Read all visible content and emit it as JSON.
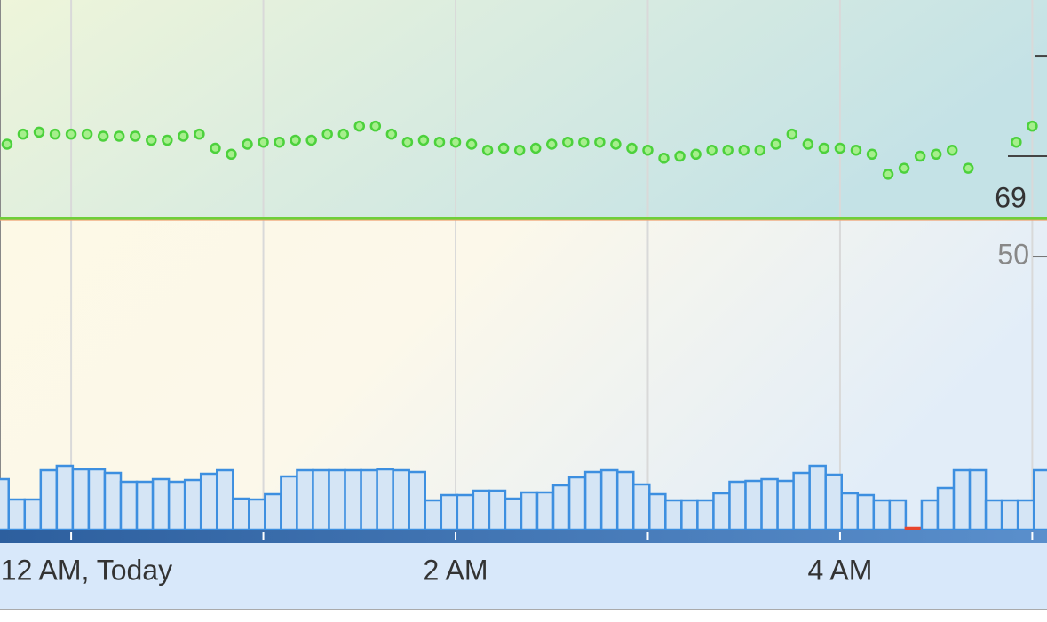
{
  "chart_data": {
    "type": "scatter",
    "xlim": [
      -22.2,
      304.6
    ],
    "ylim": [
      -87.6,
      177.9
    ],
    "yticks": [
      50
    ],
    "ytick_marks": [
      100,
      150
    ],
    "threshold": 69,
    "xticks": [
      {
        "value": 0,
        "label": "12 AM, Today"
      },
      {
        "value": 120,
        "label": "2 AM"
      },
      {
        "value": 240,
        "label": "4 AM"
      }
    ],
    "xgrid": [
      0,
      60,
      120,
      180,
      240,
      300
    ],
    "grid": true,
    "series": [
      {
        "color": "#4cd13c",
        "x": [
          -20,
          -15,
          -10,
          -5,
          0,
          5,
          10,
          15,
          20,
          25,
          30,
          35,
          40,
          45,
          50,
          55,
          60,
          65,
          70,
          75,
          80,
          85,
          90,
          95,
          100,
          105,
          110,
          115,
          120,
          125,
          130,
          135,
          140,
          145,
          150,
          155,
          160,
          165,
          170,
          175,
          180,
          185,
          190,
          195,
          200,
          205,
          210,
          215,
          220,
          225,
          230,
          235,
          240,
          245,
          250,
          255,
          260,
          265,
          270,
          275,
          280,
          285,
          290,
          295,
          300
        ],
        "values": [
          106,
          111,
          112,
          111,
          111,
          111,
          110,
          110,
          110,
          108,
          108,
          110,
          111,
          104,
          101,
          106,
          107,
          107,
          108,
          108,
          111,
          111,
          115,
          115,
          111,
          107,
          108,
          107,
          107,
          106,
          103,
          104,
          103,
          104,
          106,
          107,
          107,
          107,
          106,
          104,
          103,
          99,
          100,
          101,
          103,
          103,
          103,
          103,
          106,
          111,
          106,
          104,
          104,
          103,
          101,
          91,
          94,
          100,
          101,
          103,
          94,
          null,
          null,
          107,
          115
        ]
      },
      {
        "type": "bar",
        "axis": "y2",
        "color": "#3d8fe0",
        "width": 5,
        "x": [
          -22,
          -17,
          -12,
          -7,
          -2,
          3,
          8,
          13,
          18,
          23,
          28,
          33,
          38,
          43,
          48,
          53,
          58,
          63,
          68,
          73,
          78,
          83,
          88,
          93,
          98,
          103,
          108,
          113,
          118,
          123,
          128,
          133,
          138,
          143,
          148,
          153,
          158,
          163,
          168,
          173,
          178,
          183,
          188,
          193,
          198,
          203,
          208,
          213,
          218,
          223,
          228,
          233,
          238,
          243,
          248,
          253,
          258,
          263,
          268,
          273,
          278,
          283,
          288,
          293,
          298,
          303
        ],
        "values": [
          5.7,
          3.4,
          3.4,
          6.7,
          7.2,
          6.8,
          6.8,
          6.4,
          5.4,
          5.4,
          5.7,
          5.4,
          5.6,
          6.3,
          6.7,
          3.5,
          3.4,
          4.0,
          6.0,
          6.7,
          6.7,
          6.7,
          6.7,
          6.7,
          6.8,
          6.7,
          6.5,
          3.3,
          3.9,
          3.9,
          4.4,
          4.4,
          3.5,
          4.2,
          4.2,
          5.0,
          5.9,
          6.5,
          6.7,
          6.5,
          5.1,
          4.0,
          3.3,
          3.3,
          3.3,
          4.1,
          5.4,
          5.5,
          5.7,
          5.5,
          6.4,
          7.2,
          6.2,
          4.1,
          3.9,
          3.3,
          3.3,
          0.2,
          3.3,
          4.7,
          6.7,
          6.7,
          3.3,
          3.3,
          3.3,
          6.7
        ],
        "low_color": "#e8452c",
        "low_below": 1
      }
    ],
    "y2lim": [
      0,
      60
    ]
  }
}
